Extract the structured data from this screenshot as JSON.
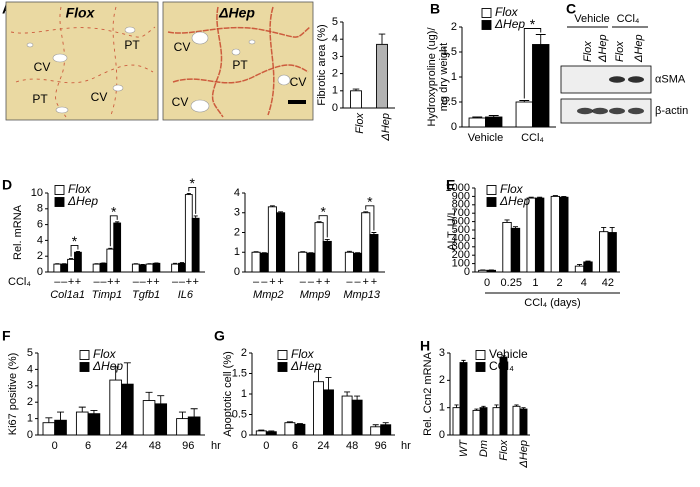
{
  "chart_data": [
    {
      "type": "bar",
      "panel": "A",
      "ylabel": "Fibrotic area (%)",
      "categories": [
        "Flox",
        "ΔHep"
      ],
      "italic_categories": true,
      "values": [
        1.0,
        3.7
      ],
      "errors": [
        0.1,
        0.6
      ],
      "colors": [
        "#ffffff",
        "#b3b3b3"
      ],
      "ylim": [
        0,
        5
      ],
      "yticks": [
        0,
        1,
        2,
        3,
        4,
        5
      ],
      "micrographs": [
        {
          "title": "Flox",
          "labels": [
            "CV",
            "PT",
            "PT",
            "CV"
          ]
        },
        {
          "title": "ΔHep",
          "labels": [
            "CV",
            "PT",
            "CV",
            "CV"
          ]
        }
      ]
    },
    {
      "type": "bar",
      "panel": "B",
      "ylabel": [
        "Hydroxyproline (ug)/",
        "mg dry  weight"
      ],
      "categories": [
        "Vehicle",
        "CCl₄"
      ],
      "italic_legend": true,
      "series": [
        {
          "name": "Flox",
          "color": "#ffffff",
          "values": [
            0.18,
            0.5
          ],
          "errors": [
            0.02,
            0.03
          ]
        },
        {
          "name": "ΔHep",
          "color": "#000000",
          "values": [
            0.2,
            1.65
          ],
          "errors": [
            0.03,
            0.2
          ]
        }
      ],
      "significance": [
        null,
        "*"
      ],
      "ylim": [
        0,
        2
      ],
      "yticks": [
        0,
        0.5,
        1,
        1.5,
        2
      ]
    },
    {
      "type": "bar",
      "panel": "D",
      "ylabel": "Rel. mRNA",
      "categories": [
        "Col1a1",
        "Timp1",
        "Tgfb1",
        "IL6"
      ],
      "italic_categories": true,
      "italic_legend": true,
      "treatment_label": "CCl₄",
      "treatments": [
        "–",
        "+"
      ],
      "series": [
        {
          "name": "Flox",
          "color": "#ffffff",
          "values": [
            [
              1,
              1.6
            ],
            [
              1,
              2.9
            ],
            [
              1,
              1.0
            ],
            [
              1,
              9.8
            ]
          ],
          "errors": [
            [
              0.05,
              0.1
            ],
            [
              0.05,
              0.1
            ],
            [
              0.05,
              0.05
            ],
            [
              0.1,
              0.15
            ]
          ]
        },
        {
          "name": "ΔHep",
          "color": "#000000",
          "values": [
            [
              1,
              2.5
            ],
            [
              1.1,
              6.2
            ],
            [
              0.9,
              1.1
            ],
            [
              1.1,
              6.8
            ]
          ],
          "errors": [
            [
              0.05,
              0.1
            ],
            [
              0.05,
              0.15
            ],
            [
              0.05,
              0.05
            ],
            [
              0.1,
              0.3
            ]
          ]
        }
      ],
      "significance": [
        "*",
        "*",
        null,
        "*"
      ],
      "ylim": [
        0,
        10
      ],
      "yticks": [
        0,
        2,
        4,
        6,
        8,
        10
      ]
    },
    {
      "type": "bar",
      "categories": [
        "Mmp2",
        "Mmp9",
        "Mmp13"
      ],
      "italic_categories": true,
      "treatments": [
        "–",
        "+"
      ],
      "series": [
        {
          "color": "#ffffff",
          "values": [
            [
              1,
              3.3
            ],
            [
              1,
              2.5
            ],
            [
              1,
              3.0
            ]
          ],
          "errors": [
            [
              0.03,
              0.05
            ],
            [
              0.03,
              0.05
            ],
            [
              0.05,
              0.05
            ]
          ]
        },
        {
          "color": "#000000",
          "values": [
            [
              0.95,
              3.0
            ],
            [
              0.95,
              1.55
            ],
            [
              0.95,
              1.9
            ]
          ],
          "errors": [
            [
              0.03,
              0.05
            ],
            [
              0.03,
              0.1
            ],
            [
              0.03,
              0.1
            ]
          ]
        }
      ],
      "significance": [
        null,
        "*",
        "*"
      ],
      "ylim": [
        0,
        4
      ],
      "yticks": [
        0,
        1,
        2,
        3,
        4
      ]
    },
    {
      "type": "bar",
      "panel": "E",
      "ylabel": "ALT, U/L",
      "xlabel": "CCl₄  (days)",
      "categories": [
        "0",
        "0.25",
        "1",
        "2",
        "4",
        "42"
      ],
      "italic_legend": true,
      "series": [
        {
          "name": "Flox",
          "color": "#ffffff",
          "values": [
            20,
            590,
            880,
            900,
            70,
            480
          ],
          "errors": [
            5,
            30,
            10,
            10,
            20,
            50
          ]
        },
        {
          "name": "ΔHep",
          "color": "#000000",
          "values": [
            20,
            520,
            880,
            890,
            120,
            470
          ],
          "errors": [
            5,
            20,
            10,
            10,
            10,
            60
          ]
        }
      ],
      "ylim": [
        0,
        1000
      ],
      "yticks": [
        0,
        100,
        200,
        300,
        400,
        500,
        600,
        700,
        800,
        900,
        1000
      ]
    },
    {
      "type": "bar",
      "panel": "F",
      "ylabel": "Ki67 positive (%)",
      "xlabel": "hr",
      "categories": [
        "0",
        "6",
        "24",
        "48",
        "96"
      ],
      "italic_legend": true,
      "series": [
        {
          "name": "Flox",
          "color": "#ffffff",
          "values": [
            0.75,
            1.4,
            3.35,
            2.1,
            1.0
          ],
          "errors": [
            0.3,
            0.3,
            0.8,
            0.5,
            0.4
          ]
        },
        {
          "name": "ΔHep",
          "color": "#000000",
          "values": [
            0.9,
            1.3,
            3.1,
            1.9,
            1.1
          ],
          "errors": [
            0.5,
            0.2,
            1.3,
            0.5,
            0.5
          ]
        }
      ],
      "ylim": [
        0,
        5
      ],
      "yticks": [
        0,
        1,
        2,
        3,
        4,
        5
      ]
    },
    {
      "type": "bar",
      "panel": "G",
      "ylabel": "Apoptotic cell (%)",
      "xlabel": "hr",
      "categories": [
        "0",
        "6",
        "24",
        "48",
        "96"
      ],
      "italic_legend": true,
      "series": [
        {
          "name": "Flox",
          "color": "#ffffff",
          "values": [
            0.1,
            0.3,
            1.3,
            0.95,
            0.2
          ],
          "errors": [
            0.02,
            0.02,
            0.3,
            0.1,
            0.05
          ]
        },
        {
          "name": "ΔHep",
          "color": "#000000",
          "values": [
            0.08,
            0.26,
            1.1,
            0.85,
            0.25
          ],
          "errors": [
            0.02,
            0.02,
            0.3,
            0.1,
            0.05
          ]
        }
      ],
      "ylim": [
        0,
        2
      ],
      "yticks": [
        0,
        0.5,
        1,
        1.5,
        2
      ]
    },
    {
      "type": "bar",
      "panel": "H",
      "ylabel": "Rel. Ccn2 mRNA",
      "categories": [
        "WT",
        "Dm",
        "Flox",
        "ΔHep"
      ],
      "italic_categories": true,
      "series": [
        {
          "name": "Vehicle",
          "color": "#ffffff",
          "values": [
            1.0,
            0.9,
            1.0,
            1.05
          ],
          "errors": [
            0.1,
            0.05,
            0.1,
            0.05
          ]
        },
        {
          "name": "CCl₄",
          "color": "#000000",
          "values": [
            2.65,
            1.0,
            2.85,
            0.95
          ],
          "errors": [
            0.08,
            0.05,
            0.05,
            0.05
          ]
        }
      ],
      "ylim": [
        0,
        3
      ],
      "yticks": [
        0,
        1,
        2,
        3
      ]
    }
  ],
  "blot": {
    "panel": "C",
    "treatments": [
      "Vehicle",
      "CCl₄"
    ],
    "lanes": [
      "Flox",
      "ΔHep",
      "Flox",
      "ΔHep"
    ],
    "rows": [
      "αSMA",
      "β-actin"
    ]
  }
}
